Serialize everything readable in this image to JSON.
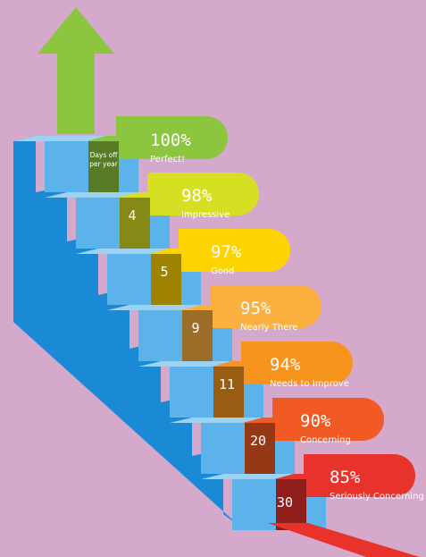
{
  "header": {
    "line1": "Days off",
    "line2": "per year"
  },
  "levels": [
    {
      "percent": "100%",
      "label": "Perfect!",
      "days": "",
      "color": "#8cc63f"
    },
    {
      "percent": "98%",
      "label": "Impressive",
      "days": "4",
      "color": "#d7df23"
    },
    {
      "percent": "97%",
      "label": "Good",
      "days": "5",
      "color": "#fdd400"
    },
    {
      "percent": "95%",
      "label": "Nearly There",
      "days": "9",
      "color": "#fbb040"
    },
    {
      "percent": "94%",
      "label": "Needs to Improve",
      "days": "11",
      "color": "#f7941d"
    },
    {
      "percent": "90%",
      "label": "Concerning",
      "days": "20",
      "color": "#f15a24"
    },
    {
      "percent": "85%",
      "label": "Seriously Concerning",
      "days": "30",
      "color": "#e8322c"
    }
  ],
  "colors": {
    "background": "#d4a9cb",
    "stairs_front": "#1b8ad6",
    "stairs_top": "#9dd2f2",
    "stairs_riser": "#5cb3ea",
    "arrow": "#8cc63f"
  },
  "icons": {
    "arrow": "up-arrow-icon"
  }
}
